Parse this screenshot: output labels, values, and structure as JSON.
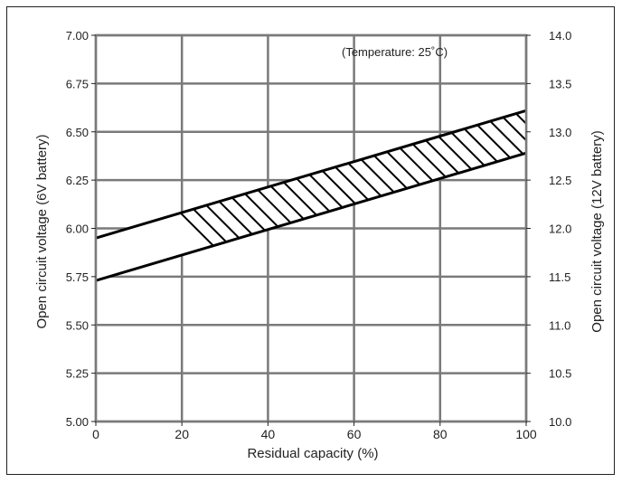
{
  "chart_data": {
    "type": "area",
    "xlabel": "Residual capacity (%)",
    "ylabel_left": "Open circuit voltage (6V battery)",
    "ylabel_right": "Open circuit voltage (12V battery)",
    "annotation": "(Temperature: 25˚C)",
    "xlim": [
      0,
      100
    ],
    "ylim_left": [
      5.0,
      7.0
    ],
    "ylim_right": [
      10.0,
      14.0
    ],
    "x_ticks": [
      "0",
      "20",
      "40",
      "60",
      "80",
      "100"
    ],
    "x_tick_values": [
      0,
      20,
      40,
      60,
      80,
      100
    ],
    "y_ticks_left": [
      "5.00",
      "5.25",
      "5.50",
      "5.75",
      "6.00",
      "6.25",
      "6.50",
      "6.75",
      "7.00"
    ],
    "y_tick_values_left": [
      5.0,
      5.25,
      5.5,
      5.75,
      6.0,
      6.25,
      6.5,
      6.75,
      7.0
    ],
    "y_ticks_right": [
      "10.0",
      "10.5",
      "11.0",
      "11.5",
      "12.0",
      "12.5",
      "13.0",
      "13.5",
      "14.0"
    ],
    "y_tick_values_right": [
      10.0,
      10.5,
      11.0,
      11.5,
      12.0,
      12.5,
      13.0,
      13.5,
      14.0
    ],
    "grid": true,
    "band": {
      "x": [
        0,
        100
      ],
      "upper": [
        5.95,
        6.61
      ],
      "lower": [
        5.73,
        6.39
      ]
    },
    "colors": {
      "grid": "#7a7a7a",
      "band": "#000000",
      "text": "#222222"
    }
  }
}
